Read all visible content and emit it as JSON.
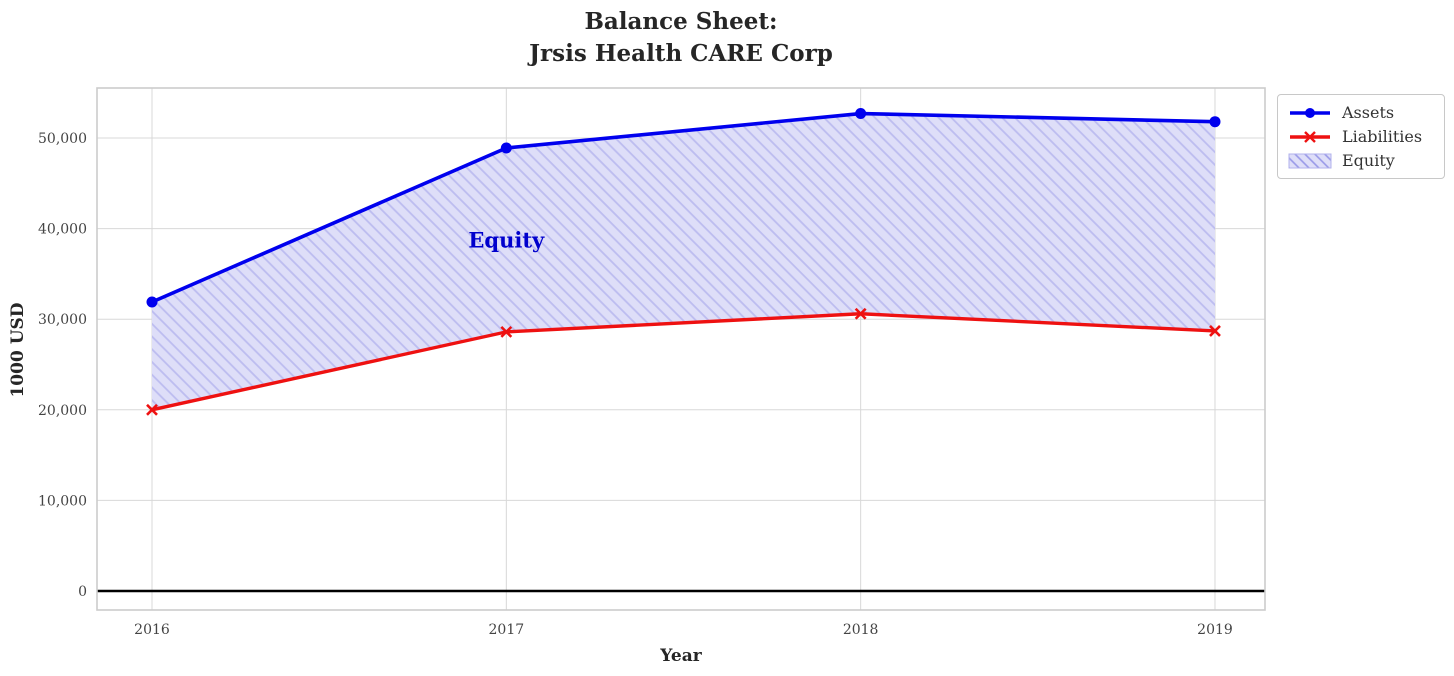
{
  "title": {
    "line1": "Balance Sheet:",
    "line2": "Jrsis Health CARE Corp"
  },
  "chart_data": {
    "type": "line",
    "title": "Balance Sheet:\nJrsis Health CARE Corp",
    "xlabel": "Year",
    "ylabel": "1000 USD",
    "categories": [
      "2016",
      "2017",
      "2018",
      "2019"
    ],
    "series": [
      {
        "name": "Assets",
        "values": [
          31900,
          48900,
          52700,
          51800
        ],
        "color": "#0000ee",
        "marker": "circle"
      },
      {
        "name": "Liabilities",
        "values": [
          20000,
          28600,
          30600,
          28700
        ],
        "color": "#ee1111",
        "marker": "x"
      }
    ],
    "area": {
      "name": "Equity",
      "between": [
        "Assets",
        "Liabilities"
      ],
      "fill_color": "#dedef8",
      "hatch": "//",
      "hatch_color": "#bcbcf0"
    },
    "annotation": {
      "text": "Equity",
      "x": "2017",
      "y": 38700,
      "color": "#0000cd"
    },
    "yticks": [
      0,
      10000,
      20000,
      30000,
      40000,
      50000
    ],
    "ytick_labels": [
      "0",
      "10,000",
      "20,000",
      "30,000",
      "40,000",
      "50,000"
    ],
    "ylim": [
      -2100,
      55600
    ],
    "grid": true,
    "grid_color": "#d8d8d8",
    "zero_line": true,
    "zero_line_color": "#000000",
    "legend_position": "upper right outside"
  },
  "legend": {
    "items": [
      {
        "label": "Assets"
      },
      {
        "label": "Liabilities"
      },
      {
        "label": "Equity"
      }
    ]
  }
}
